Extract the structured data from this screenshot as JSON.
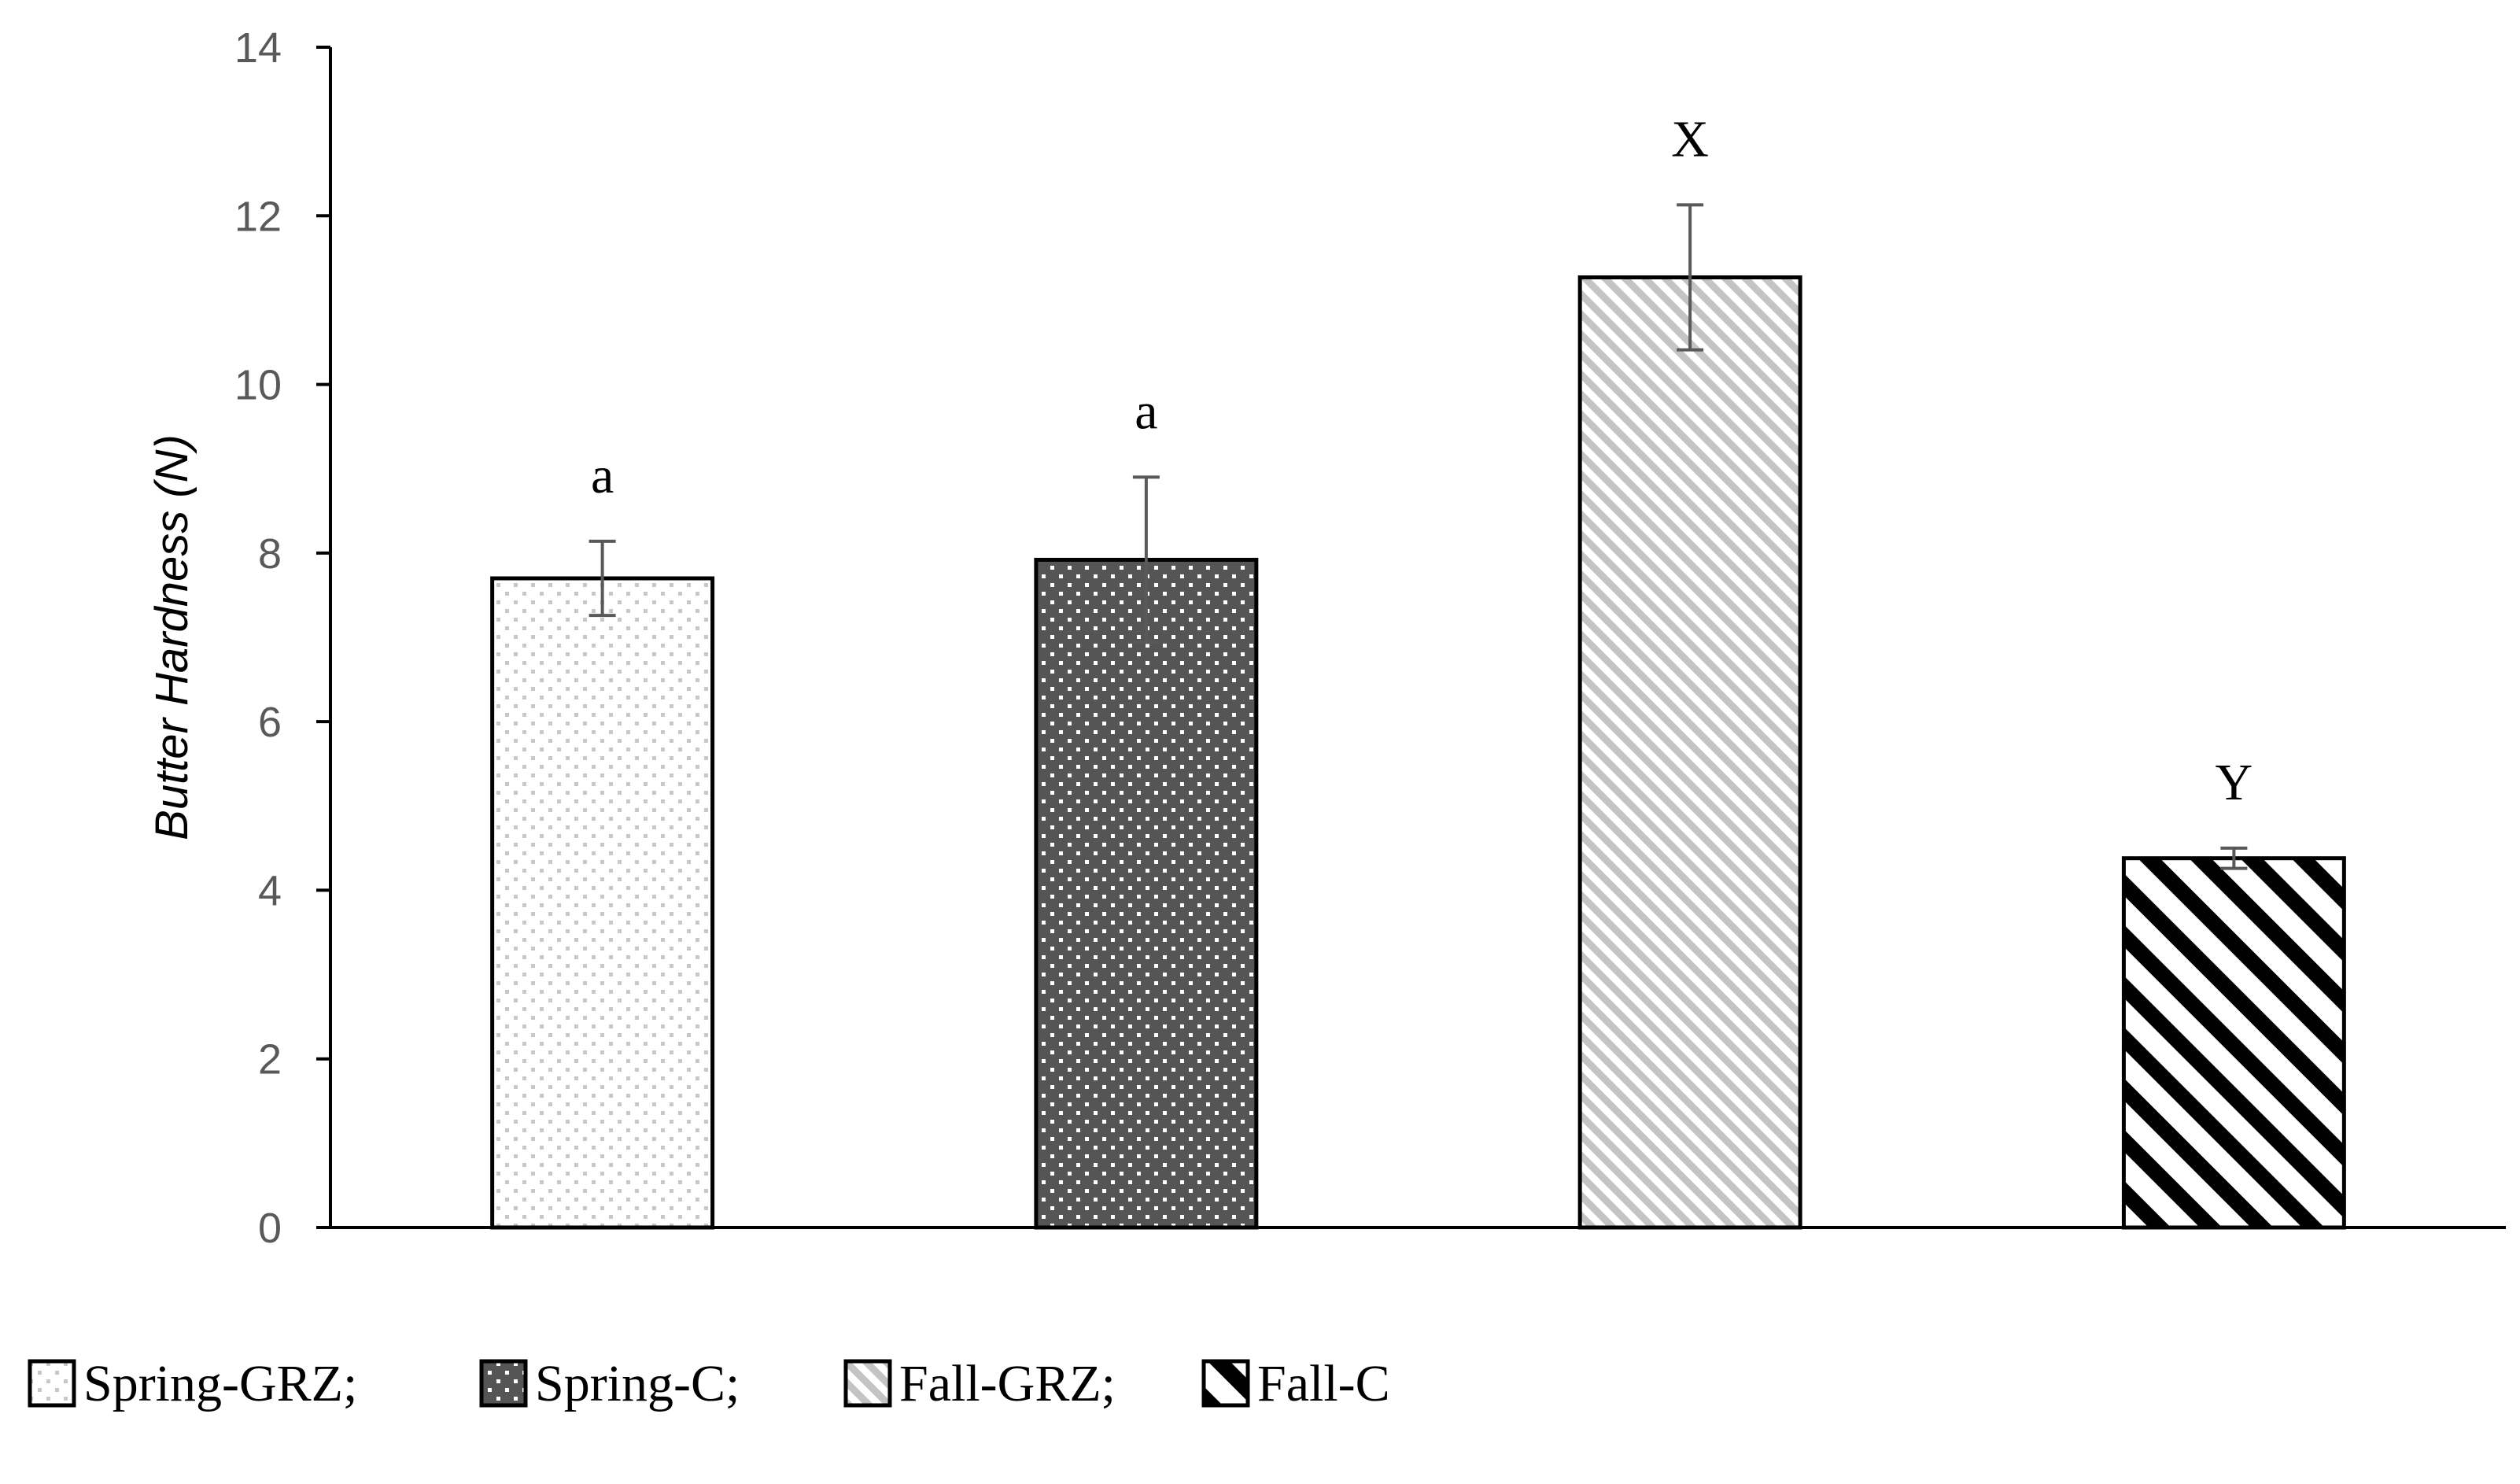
{
  "chart_data": {
    "type": "bar",
    "title": "",
    "xlabel": "",
    "ylabel": "Butter Hardness (N)",
    "ylim": [
      0,
      14
    ],
    "yticks": [
      0,
      2,
      4,
      6,
      8,
      10,
      12,
      14
    ],
    "grid": false,
    "legend_position": "bottom",
    "categories": [
      "Spring-GRZ",
      "Spring-C",
      "Fall-GRZ",
      "Fall-C"
    ],
    "values": [
      7.7,
      7.92,
      11.27,
      4.38
    ],
    "error": [
      0.44,
      0.98,
      0.86,
      0.12
    ],
    "significance_labels": [
      "a",
      "a",
      "X",
      "Y"
    ],
    "legend": [
      {
        "label": "Spring-GRZ;",
        "pattern": "light-dots"
      },
      {
        "label": "Spring-C;",
        "pattern": "dark-dots"
      },
      {
        "label": "Fall-GRZ;",
        "pattern": "light-diagonal"
      },
      {
        "label": "Fall-C",
        "pattern": "bold-diagonal"
      }
    ],
    "colors": {
      "axis": "#000000",
      "tick_label": "#595959",
      "error_bar": "#595959",
      "bar_outline": "#000000"
    }
  }
}
